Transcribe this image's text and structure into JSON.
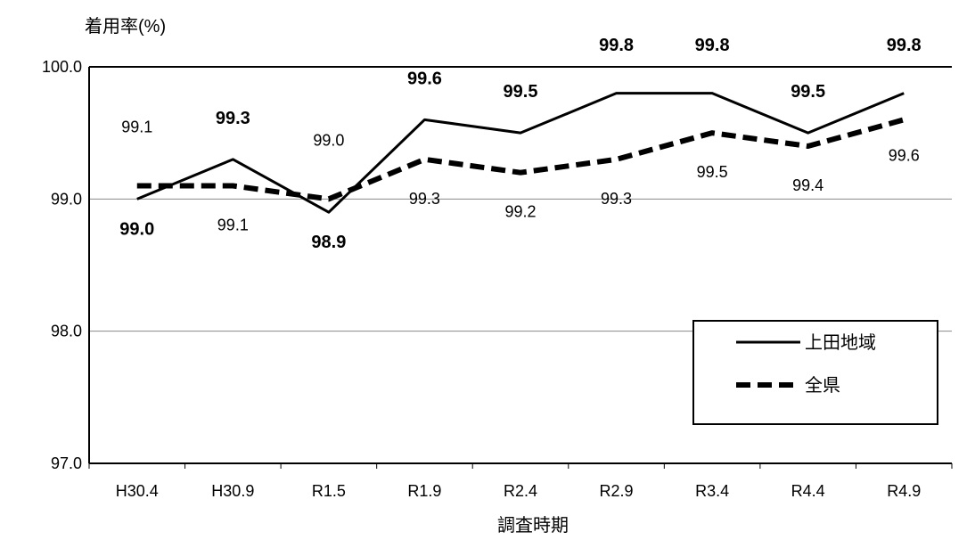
{
  "chart_data": {
    "type": "line",
    "ylabel": "着用率(%)",
    "xlabel": "調査時期",
    "ylim": [
      97.0,
      100.0
    ],
    "y_ticks": [
      "100.0",
      "99.0",
      "98.0",
      "97.0"
    ],
    "categories": [
      "H30.4",
      "H30.9",
      "R1.5",
      "R1.9",
      "R2.4",
      "R2.9",
      "R3.4",
      "R4.4",
      "R4.9"
    ],
    "grid": "horizontal",
    "legend_position": "bottom-right",
    "series": [
      {
        "name": "上田地域",
        "style": "solid",
        "color": "#000000",
        "values": [
          99.0,
          99.3,
          98.9,
          99.6,
          99.5,
          99.8,
          99.8,
          99.5,
          99.8
        ],
        "labels": [
          "99.0",
          "99.3",
          "98.9",
          "99.6",
          "99.5",
          "99.8",
          "99.8",
          "99.5",
          "99.8"
        ]
      },
      {
        "name": "全県",
        "style": "dashed",
        "color": "#000000",
        "values": [
          99.1,
          99.1,
          99.0,
          99.3,
          99.2,
          99.3,
          99.5,
          99.4,
          99.6
        ],
        "labels": [
          "99.1",
          "99.1",
          "99.0",
          "99.3",
          "99.2",
          "99.3",
          "99.5",
          "99.4",
          "99.6"
        ]
      }
    ]
  }
}
